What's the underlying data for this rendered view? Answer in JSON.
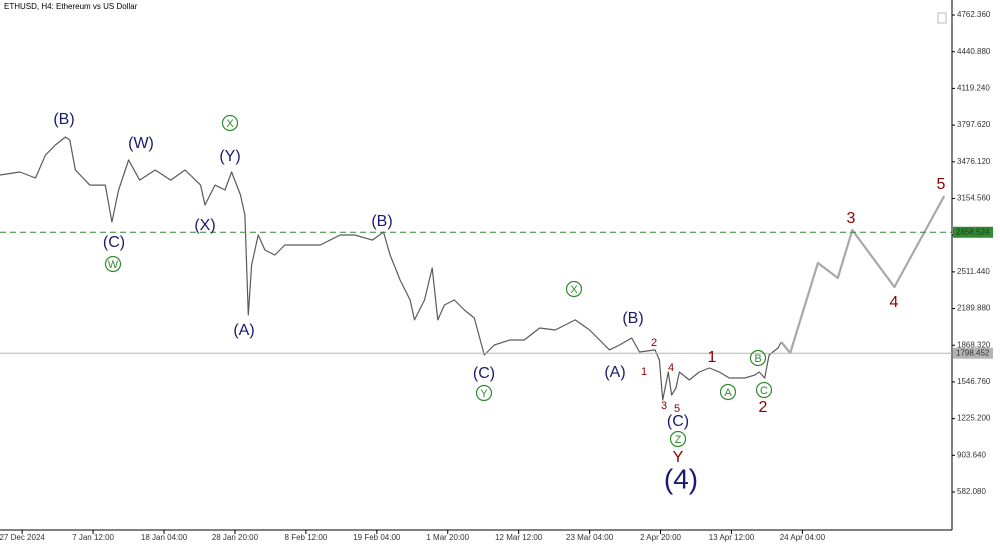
{
  "chart_data": {
    "type": "line",
    "title": "ETHUSD, H4:  Ethereum vs US Dollar",
    "xlim": [
      -20,
      839
    ],
    "ylim": [
      249,
      4894
    ],
    "xticks": [
      {
        "value": 0,
        "label": "27 Dec 2024"
      },
      {
        "value": 64,
        "label": "7 Jan 12:00"
      },
      {
        "value": 128,
        "label": "18 Jan 04:00"
      },
      {
        "value": 192,
        "label": "28 Jan 20:00"
      },
      {
        "value": 256,
        "label": "8 Feb 12:00"
      },
      {
        "value": 320,
        "label": "19 Feb 04:00"
      },
      {
        "value": 384,
        "label": "1 Mar 20:00"
      },
      {
        "value": 448,
        "label": "12 Mar 12:00"
      },
      {
        "value": 512,
        "label": "23 Mar 04:00"
      },
      {
        "value": 576,
        "label": "2 Apr 20:00"
      },
      {
        "value": 640,
        "label": "13 Apr 12:00"
      },
      {
        "value": 704,
        "label": "24 Apr 04:00"
      }
    ],
    "yticks": [
      {
        "value": 4762.36,
        "label": "4762.360"
      },
      {
        "value": 4440.88,
        "label": "4440.880"
      },
      {
        "value": 4119.24,
        "label": "4119.240"
      },
      {
        "value": 3797.62,
        "label": "3797.620"
      },
      {
        "value": 3476.12,
        "label": "3476.120"
      },
      {
        "value": 3154.56,
        "label": "3154.560"
      },
      {
        "value": 2833,
        "label": "2833.000"
      },
      {
        "value": 2511.44,
        "label": "2511.440"
      },
      {
        "value": 2189.88,
        "label": "2189.880"
      },
      {
        "value": 1868.32,
        "label": "1868.320"
      },
      {
        "value": 1546.76,
        "label": "1546.760"
      },
      {
        "value": 1225.2,
        "label": "1225.200"
      },
      {
        "value": 903.64,
        "label": "903.640"
      },
      {
        "value": 582.08,
        "label": "582.080"
      }
    ],
    "series": [
      {
        "color": "#5a5a5a",
        "x": [
          -20,
          -2,
          12,
          21,
          30,
          39,
          43,
          48,
          61,
          75,
          81,
          87,
          96,
          106,
          120,
          134,
          147,
          161,
          165,
          174,
          183,
          189,
          197,
          201,
          204,
          207,
          213,
          219,
          228,
          237,
          251,
          269,
          287,
          300,
          316,
          326,
          332,
          341,
          350,
          354,
          363,
          370,
          375,
          381,
          390,
          399,
          408,
          417,
          426,
          440,
          453,
          467,
          481,
          499,
          512,
          521,
          530,
          539,
          550,
          557,
          571,
          575,
          578,
          583,
          586,
          590,
          593,
          602,
          611,
          620,
          629,
          638,
          652,
          661,
          665,
          670,
          674,
          682,
          685
        ],
        "values": [
          3360,
          3387,
          3334,
          3535,
          3623,
          3693,
          3667,
          3404,
          3272,
          3272,
          2948,
          3229,
          3492,
          3316,
          3404,
          3316,
          3404,
          3272,
          3097,
          3272,
          3229,
          3387,
          3185,
          3010,
          2133,
          2571,
          2834,
          2703,
          2659,
          2747,
          2747,
          2747,
          2834,
          2834,
          2790,
          2861,
          2659,
          2440,
          2265,
          2090,
          2265,
          2545,
          2090,
          2221,
          2265,
          2177,
          2107,
          1783,
          1870,
          1914,
          1914,
          2019,
          2002,
          2090,
          2002,
          1914,
          1827,
          1870,
          1932,
          1809,
          1827,
          1739,
          1388,
          1634,
          1432,
          1494,
          1634,
          1564,
          1634,
          1669,
          1634,
          1581,
          1581,
          1607,
          1634,
          1581,
          1783,
          1844,
          1897
        ]
      },
      {
        "color": "#a8a8a8",
        "x": [
          685,
          693,
          718,
          736,
          749,
          787,
          832
        ],
        "values": [
          1897,
          1800,
          2589,
          2458,
          2878,
          2379,
          3176
        ]
      }
    ],
    "levels": [
      {
        "value": 2858.524,
        "color": "#2e8b2e"
      },
      {
        "value": 1798.452,
        "color": "#b4b4b4"
      }
    ],
    "annotations": [
      {
        "text": "(B)",
        "color": "#1a1a6e"
      },
      {
        "text": "(W)",
        "color": "#1a1a6e"
      },
      {
        "text": "(Y)",
        "color": "#1a1a6e"
      },
      {
        "text": "(X)",
        "color": "#1a1a6e"
      },
      {
        "text": "(C)",
        "color": "#1a1a6e"
      },
      {
        "text": "(A)",
        "color": "#1a1a6e"
      },
      {
        "text": "(B)",
        "color": "#1a1a6e"
      },
      {
        "text": "(C)",
        "color": "#1a1a6e"
      },
      {
        "text": "(B)",
        "color": "#1a1a6e"
      },
      {
        "text": "(A)",
        "color": "#1a1a6e"
      },
      {
        "text": "(C)",
        "color": "#1a1a6e"
      },
      {
        "text": "(4)",
        "color": "#1a1a6e"
      },
      {
        "text": "W",
        "color": "#2e8b2e"
      },
      {
        "text": "X",
        "color": "#2e8b2e"
      },
      {
        "text": "Y",
        "color": "#2e8b2e"
      },
      {
        "text": "X",
        "color": "#2e8b2e"
      },
      {
        "text": "Z",
        "color": "#2e8b2e"
      },
      {
        "text": "A",
        "color": "#2e8b2e"
      },
      {
        "text": "B",
        "color": "#2e8b2e"
      },
      {
        "text": "C",
        "color": "#2e8b2e"
      },
      {
        "text": "1",
        "color": "#8b0000"
      },
      {
        "text": "2",
        "color": "#8b0000"
      },
      {
        "text": "3",
        "color": "#8b0000"
      },
      {
        "text": "4",
        "color": "#8b0000"
      },
      {
        "text": "5",
        "color": "#8b0000"
      },
      {
        "text": "Y",
        "color": "#8b0000"
      },
      {
        "text": "1",
        "color": "#8b0000"
      },
      {
        "text": "2",
        "color": "#8b0000"
      },
      {
        "text": "3",
        "color": "#8b0000"
      },
      {
        "text": "4",
        "color": "#8b0000"
      },
      {
        "text": "5",
        "color": "#8b0000"
      }
    ]
  }
}
